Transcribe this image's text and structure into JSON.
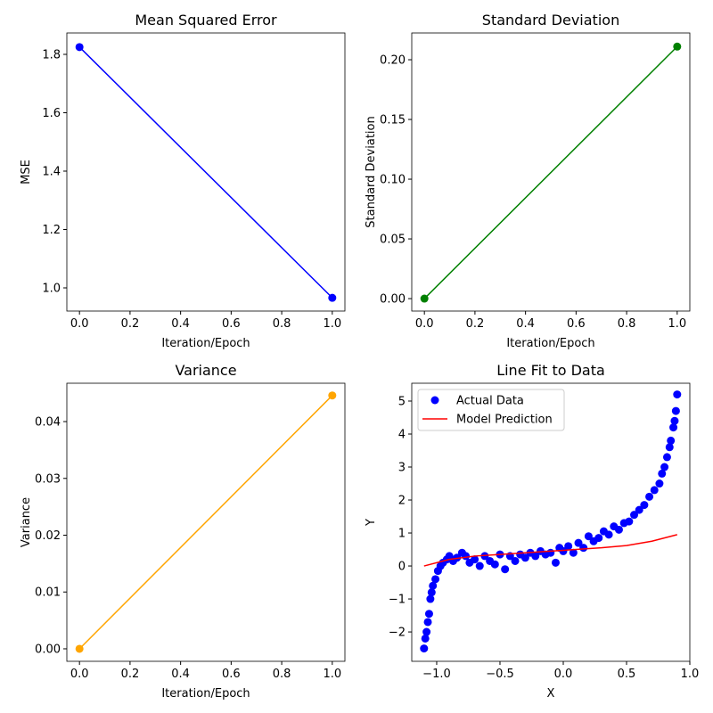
{
  "chart_data": [
    {
      "type": "line",
      "title": "Mean Squared Error",
      "x_label": "Iteration/Epoch",
      "y_label": "MSE",
      "x": [
        0,
        1
      ],
      "values": [
        1.825,
        0.966
      ],
      "color": "#0000ff",
      "xlim": [
        -0.05,
        1.05
      ],
      "ylim": [
        0.9206,
        1.8733
      ],
      "xticks": [
        {
          "value": 0,
          "label": "0.0"
        },
        0.2,
        0.4,
        0.6,
        0.8,
        {
          "value": 1,
          "label": "1.0"
        }
      ],
      "yticks": [
        {
          "value": 1,
          "label": "1.0"
        },
        1.2,
        1.4,
        1.6,
        1.8
      ]
    },
    {
      "type": "line",
      "title": "Standard Deviation",
      "x_label": "Iteration/Epoch",
      "y_label": "Standard Deviation",
      "x": [
        0,
        1
      ],
      "values": [
        0,
        0.211
      ],
      "color": "#008000",
      "xlim": [
        -0.05,
        1.05
      ],
      "ylim": [
        -0.0104,
        0.2224
      ],
      "xticks": [
        {
          "value": 0,
          "label": "0.0"
        },
        0.2,
        0.4,
        0.6,
        0.8,
        {
          "value": 1,
          "label": "1.0"
        }
      ],
      "yticks": [
        {
          "value": 0,
          "label": "0.00"
        },
        0.05,
        {
          "value": 0.1,
          "label": "0.10"
        },
        0.15,
        {
          "value": 0.2,
          "label": "0.20"
        }
      ]
    },
    {
      "type": "line",
      "title": "Variance",
      "x_label": "Iteration/Epoch",
      "y_label": "Variance",
      "x": [
        0,
        1
      ],
      "values": [
        0,
        0.0446
      ],
      "color": "#ffa500",
      "xlim": [
        -0.05,
        1.05
      ],
      "ylim": [
        -0.0022,
        0.04675
      ],
      "xticks": [
        {
          "value": 0,
          "label": "0.0"
        },
        0.2,
        0.4,
        0.6,
        0.8,
        {
          "value": 1,
          "label": "1.0"
        }
      ],
      "yticks": [
        {
          "value": 0,
          "label": "0.00"
        },
        0.01,
        0.02,
        0.03,
        0.04
      ]
    },
    {
      "type": "scatter",
      "title": "Line Fit to Data",
      "x_label": "X",
      "y_label": "Y",
      "legend": "upper left",
      "xlim": [
        -1.197,
        1.0
      ],
      "ylim": [
        -2.89,
        5.54
      ],
      "xticks": [
        {
          "value": -1,
          "label": "−1.0"
        },
        {
          "value": -0.5,
          "label": "−0.5"
        },
        {
          "value": 0,
          "label": "0.0"
        },
        0.5,
        {
          "value": 1,
          "label": "1.0"
        }
      ],
      "yticks": [
        {
          "value": -2,
          "label": "−2"
        },
        {
          "value": -1,
          "label": "−1"
        },
        0,
        1,
        2,
        3,
        4,
        5
      ],
      "series": [
        {
          "name": "Actual Data",
          "type": "scatter",
          "color": "#0000ff",
          "x": [
            -1.1,
            -1.09,
            -1.08,
            -1.07,
            -1.06,
            -1.05,
            -1.04,
            -1.03,
            -1.01,
            -0.99,
            -0.97,
            -0.95,
            -0.92,
            -0.9,
            -0.87,
            -0.84,
            -0.8,
            -0.77,
            -0.74,
            -0.7,
            -0.66,
            -0.62,
            -0.58,
            -0.54,
            -0.5,
            -0.46,
            -0.42,
            -0.38,
            -0.34,
            -0.3,
            -0.26,
            -0.22,
            -0.18,
            -0.14,
            -0.1,
            -0.06,
            -0.03,
            0.0,
            0.04,
            0.08,
            0.12,
            0.16,
            0.2,
            0.24,
            0.28,
            0.32,
            0.36,
            0.4,
            0.44,
            0.48,
            0.52,
            0.56,
            0.6,
            0.64,
            0.68,
            0.72,
            0.76,
            0.78,
            0.8,
            0.82,
            0.84,
            0.85,
            0.87,
            0.88,
            0.89,
            0.9
          ],
          "values": [
            -2.5,
            -2.2,
            -2.0,
            -1.7,
            -1.45,
            -1.0,
            -0.8,
            -0.6,
            -0.4,
            -0.15,
            0.0,
            0.1,
            0.2,
            0.3,
            0.15,
            0.25,
            0.4,
            0.3,
            0.1,
            0.2,
            0.0,
            0.3,
            0.15,
            0.05,
            0.35,
            -0.1,
            0.3,
            0.15,
            0.35,
            0.25,
            0.4,
            0.3,
            0.45,
            0.35,
            0.4,
            0.1,
            0.55,
            0.45,
            0.6,
            0.4,
            0.7,
            0.55,
            0.9,
            0.75,
            0.85,
            1.05,
            0.95,
            1.2,
            1.1,
            1.3,
            1.35,
            1.55,
            1.7,
            1.85,
            2.1,
            2.3,
            2.5,
            2.8,
            3.0,
            3.3,
            3.6,
            3.8,
            4.2,
            4.4,
            4.7,
            5.2
          ]
        },
        {
          "name": "Model Prediction",
          "type": "line",
          "color": "#ff0000",
          "x": [
            -1.1,
            -0.9,
            -0.7,
            -0.5,
            -0.3,
            -0.1,
            0.1,
            0.3,
            0.5,
            0.7,
            0.9
          ],
          "values": [
            0.0,
            0.2,
            0.3,
            0.35,
            0.4,
            0.45,
            0.5,
            0.55,
            0.62,
            0.75,
            0.95
          ]
        }
      ]
    }
  ]
}
